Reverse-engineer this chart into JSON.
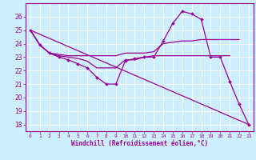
{
  "background_color": "#cceeff",
  "grid_color": "#aaddcc",
  "line_color": "#990099",
  "xlabel": "Windchill (Refroidissement éolien,°C)",
  "xlim": [
    -0.5,
    23.5
  ],
  "ylim": [
    17.5,
    27.0
  ],
  "yticks": [
    18,
    19,
    20,
    21,
    22,
    23,
    24,
    25,
    26
  ],
  "xticks": [
    0,
    1,
    2,
    3,
    4,
    5,
    6,
    7,
    8,
    9,
    10,
    11,
    12,
    13,
    14,
    15,
    16,
    17,
    18,
    19,
    20,
    21,
    22,
    23
  ],
  "lines": [
    {
      "x": [
        0,
        1,
        2,
        3,
        4,
        5,
        6,
        7,
        8,
        9,
        10,
        11,
        12,
        13,
        14,
        15,
        16,
        17,
        18,
        19,
        20,
        21,
        22,
        23
      ],
      "y": [
        25.0,
        23.9,
        23.3,
        23.0,
        22.8,
        22.5,
        22.2,
        21.5,
        21.0,
        21.0,
        22.7,
        22.9,
        23.0,
        23.0,
        24.2,
        25.5,
        26.4,
        26.2,
        25.8,
        23.0,
        23.0,
        21.2,
        19.5,
        18.0
      ],
      "marker": true
    },
    {
      "x": [
        0,
        1,
        2,
        3,
        4,
        5,
        6,
        7,
        8,
        9,
        10,
        11,
        12,
        13,
        14,
        15,
        16,
        17,
        18,
        19,
        20,
        21,
        22
      ],
      "y": [
        25.0,
        23.9,
        23.3,
        23.2,
        23.1,
        23.1,
        23.1,
        23.1,
        23.1,
        23.1,
        23.3,
        23.3,
        23.3,
        23.4,
        24.0,
        24.1,
        24.2,
        24.2,
        24.3,
        24.3,
        24.3,
        24.3,
        24.3
      ],
      "marker": false
    },
    {
      "x": [
        0,
        1,
        2,
        3,
        4,
        5,
        6,
        7,
        8,
        9,
        10,
        11,
        12,
        13,
        14,
        15,
        16,
        17,
        18,
        19,
        20,
        21
      ],
      "y": [
        25.0,
        23.9,
        23.3,
        23.1,
        23.0,
        22.9,
        22.7,
        22.2,
        22.2,
        22.2,
        22.8,
        22.8,
        23.0,
        23.1,
        23.1,
        23.1,
        23.1,
        23.1,
        23.1,
        23.1,
        23.1,
        23.1
      ],
      "marker": false
    },
    {
      "x": [
        0,
        23
      ],
      "y": [
        25.0,
        18.0
      ],
      "marker": false
    }
  ]
}
